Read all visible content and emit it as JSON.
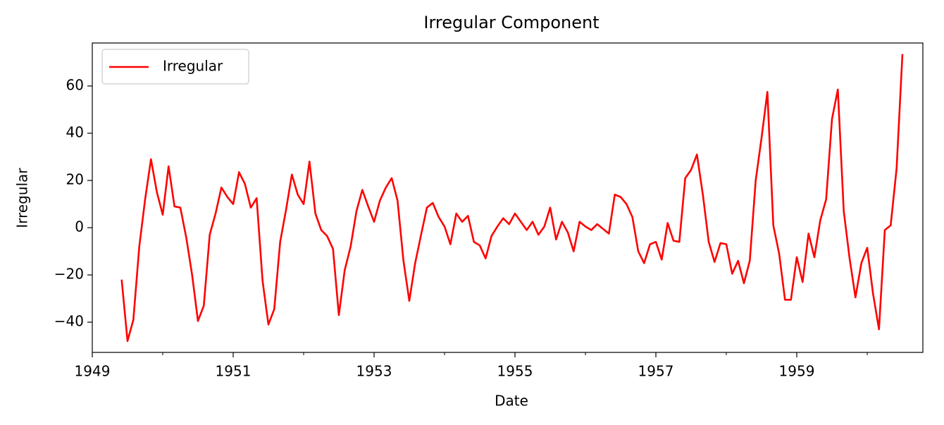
{
  "chart_data": {
    "type": "line",
    "title": "Irregular Component",
    "xlabel": "Date",
    "ylabel": "Irregular",
    "x": [
      1949.417,
      1949.5,
      1949.583,
      1949.667,
      1949.75,
      1949.833,
      1949.917,
      1950.0,
      1950.083,
      1950.167,
      1950.25,
      1950.333,
      1950.417,
      1950.5,
      1950.583,
      1950.667,
      1950.75,
      1950.833,
      1950.917,
      1951.0,
      1951.083,
      1951.167,
      1951.25,
      1951.333,
      1951.417,
      1951.5,
      1951.583,
      1951.667,
      1951.75,
      1951.833,
      1951.917,
      1952.0,
      1952.083,
      1952.167,
      1952.25,
      1952.333,
      1952.417,
      1952.5,
      1952.583,
      1952.667,
      1952.75,
      1952.833,
      1952.917,
      1953.0,
      1953.083,
      1953.167,
      1953.25,
      1953.333,
      1953.417,
      1953.5,
      1953.583,
      1953.667,
      1953.75,
      1953.833,
      1953.917,
      1954.0,
      1954.083,
      1954.167,
      1954.25,
      1954.333,
      1954.417,
      1954.5,
      1954.583,
      1954.667,
      1954.75,
      1954.833,
      1954.917,
      1955.0,
      1955.083,
      1955.167,
      1955.25,
      1955.333,
      1955.417,
      1955.5,
      1955.583,
      1955.667,
      1955.75,
      1955.833,
      1955.917,
      1956.0,
      1956.083,
      1956.167,
      1956.25,
      1956.333,
      1956.417,
      1956.5,
      1956.583,
      1956.667,
      1956.75,
      1956.833,
      1956.917,
      1957.0,
      1957.083,
      1957.167,
      1957.25,
      1957.333,
      1957.417,
      1957.5,
      1957.583,
      1957.667,
      1957.75,
      1957.833,
      1957.917,
      1958.0,
      1958.083,
      1958.167,
      1958.25,
      1958.333,
      1958.417,
      1958.5,
      1958.583,
      1958.667,
      1958.75,
      1958.833,
      1958.917,
      1959.0,
      1959.083,
      1959.167,
      1959.25,
      1959.333,
      1959.417,
      1959.5,
      1959.583,
      1959.667,
      1959.75,
      1959.833,
      1959.917,
      1960.0,
      1960.083,
      1960.167,
      1960.25,
      1960.333,
      1960.417,
      1960.5
    ],
    "series": [
      {
        "name": "Irregular",
        "color": "#ff0000",
        "values": [
          -22,
          -48,
          -39,
          -8,
          12,
          29,
          15,
          5.5,
          26,
          9,
          8.5,
          -4,
          -20,
          -39.5,
          -33,
          -3,
          6,
          17,
          13,
          10,
          23.5,
          18.5,
          8.5,
          12.5,
          -22.5,
          -41,
          -34.5,
          -6,
          7.5,
          22.5,
          14,
          10,
          28,
          6,
          -1,
          -3.5,
          -9,
          -37,
          -18,
          -8,
          7,
          16,
          9,
          2.5,
          11.5,
          17,
          21,
          11.5,
          -14,
          -31,
          -15,
          -3,
          8.5,
          10.5,
          4.5,
          0.5,
          -7,
          6,
          2.5,
          5,
          -6,
          -7.5,
          -13,
          -3.5,
          0.5,
          4,
          1.5,
          6,
          2.5,
          -1,
          2.5,
          -3,
          0.5,
          8.5,
          -5,
          2.5,
          -2,
          -10,
          2.5,
          0.5,
          -1,
          1.5,
          -0.5,
          -2.5,
          14,
          13,
          10,
          4.5,
          -10,
          -15,
          -7,
          -6,
          -13.5,
          2,
          -5.5,
          -6,
          21,
          24.5,
          31,
          14,
          -6,
          -14.5,
          -6.5,
          -7,
          -19.5,
          -14,
          -23.5,
          -14,
          20,
          38,
          57.5,
          1,
          -11,
          -30.5,
          -30.5,
          -12.5,
          -23,
          -2.5,
          -12.5,
          3,
          12,
          46,
          58.5,
          7,
          -13,
          -29.5,
          -15,
          -8.5,
          -28,
          -43,
          -1,
          1,
          25,
          73.5
        ]
      }
    ],
    "xlim": [
      1949.0,
      1960.79
    ],
    "ylim": [
      -52.8,
      78.2
    ],
    "xticks": [
      1949,
      1951,
      1953,
      1955,
      1957,
      1959
    ],
    "xminorticks": [
      1950,
      1952,
      1954,
      1956,
      1958,
      1960
    ],
    "yticks": [
      {
        "value": -40,
        "label": "−40"
      },
      {
        "value": -20,
        "label": "−20"
      },
      0,
      20,
      40,
      60
    ],
    "legend": "upper left",
    "grid": false
  }
}
